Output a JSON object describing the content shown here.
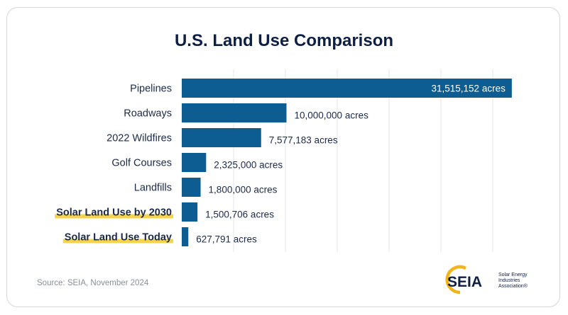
{
  "chart_data": {
    "type": "bar",
    "orientation": "horizontal",
    "title": "U.S. Land Use Comparison",
    "categories": [
      "Pipelines",
      "Roadways",
      "2022 Wildfires",
      "Golf Courses",
      "Landfills",
      "Solar Land Use by 2030",
      "Solar Land Use Today"
    ],
    "values": [
      31515152,
      10000000,
      7577183,
      2325000,
      1800000,
      1500706,
      627791
    ],
    "labels": [
      "31,515,152 acres",
      "10,000,000 acres",
      "7,577,183 acres",
      "2,325,000 acres",
      "1,800,000 acres",
      "1,500,706 acres",
      "627,791 acres"
    ],
    "highlighted": [
      false,
      false,
      false,
      false,
      false,
      true,
      true
    ],
    "xlim": [
      0,
      32000000
    ],
    "grid": true,
    "xlabel": "",
    "ylabel": ""
  },
  "colors": {
    "bar": "#0d5d92",
    "highlight": "#f6d44a",
    "text": "#1c2a4a",
    "title": "#0d1f45",
    "grid": "#e4e4e4",
    "logo_navy": "#0d1f45",
    "logo_gold": "#f2b418"
  },
  "footer": {
    "source": "Source: SEIA, November 2024"
  },
  "logo": {
    "wordmark": "SEIA",
    "line1": "Solar Energy",
    "line2": "Industries",
    "line3": "Association®"
  }
}
